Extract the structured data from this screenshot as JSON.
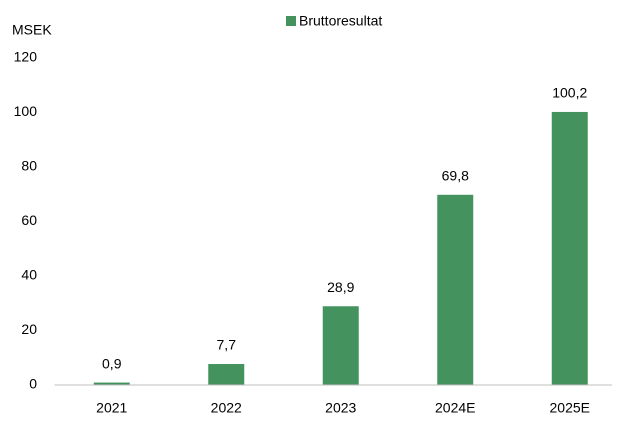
{
  "chart_data": {
    "type": "bar",
    "y_axis_label": "MSEK",
    "categories": [
      "2021",
      "2022",
      "2023",
      "2024E",
      "2025E"
    ],
    "series": [
      {
        "name": "Bruttoresultat",
        "color": "#44935f",
        "values": [
          0.9,
          7.7,
          28.9,
          69.8,
          100.2
        ],
        "value_labels": [
          "0,9",
          "7,7",
          "28,9",
          "69,8",
          "100,2"
        ]
      }
    ],
    "ylim": [
      0,
      120
    ],
    "yticks": [
      0,
      20,
      40,
      60,
      80,
      100,
      120
    ],
    "grid": false,
    "legend": "top"
  }
}
